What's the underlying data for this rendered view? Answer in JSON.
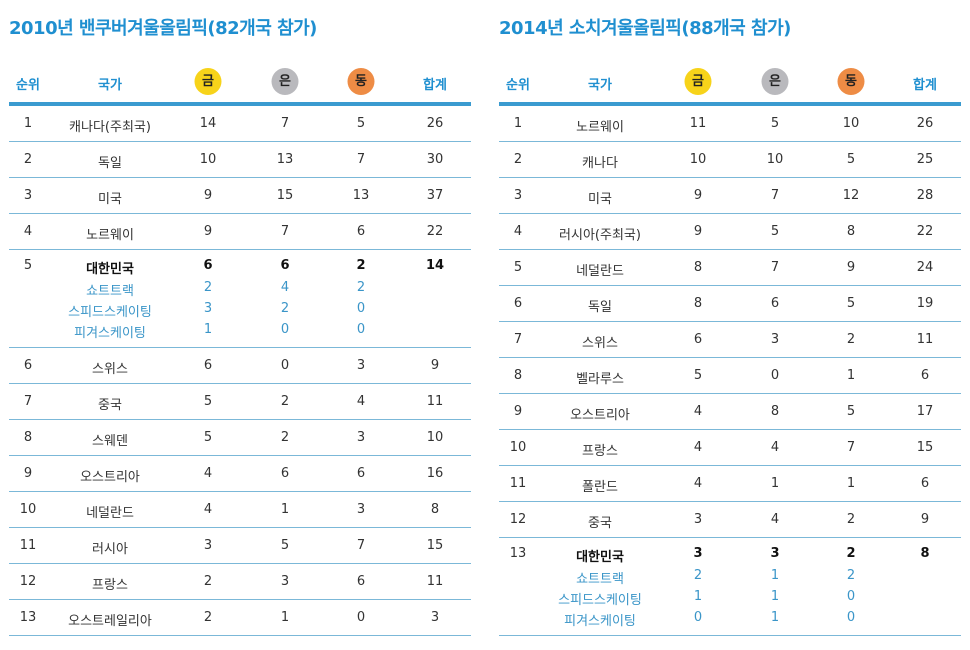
{
  "headers": {
    "rank": "순위",
    "country": "국가",
    "gold": "금",
    "silver": "은",
    "bronze": "동",
    "total": "합계"
  },
  "colors": {
    "gold": "#f7d31a",
    "silver": "#b9b9bd",
    "bronze": "#ee8c45",
    "accent": "#1f8fd0"
  },
  "tables": [
    {
      "title": "2010년 밴쿠버겨울올림픽(82개국 참가)",
      "rows": [
        {
          "rank": "1",
          "country": "캐나다(주최국)",
          "gold": "14",
          "silver": "7",
          "bronze": "5",
          "total": "26"
        },
        {
          "rank": "2",
          "country": "독일",
          "gold": "10",
          "silver": "13",
          "bronze": "7",
          "total": "30"
        },
        {
          "rank": "3",
          "country": "미국",
          "gold": "9",
          "silver": "15",
          "bronze": "13",
          "total": "37"
        },
        {
          "rank": "4",
          "country": "노르웨이",
          "gold": "9",
          "silver": "7",
          "bronze": "6",
          "total": "22"
        },
        {
          "rank": "5",
          "country": "대한민국",
          "gold": "6",
          "silver": "6",
          "bronze": "2",
          "total": "14",
          "highlight": true,
          "breakdown": [
            {
              "sport": "쇼트트랙",
              "gold": "2",
              "silver": "4",
              "bronze": "2"
            },
            {
              "sport": "스피드스케이팅",
              "gold": "3",
              "silver": "2",
              "bronze": "0"
            },
            {
              "sport": "피겨스케이팅",
              "gold": "1",
              "silver": "0",
              "bronze": "0"
            }
          ]
        },
        {
          "rank": "6",
          "country": "스위스",
          "gold": "6",
          "silver": "0",
          "bronze": "3",
          "total": "9"
        },
        {
          "rank": "7",
          "country": "중국",
          "gold": "5",
          "silver": "2",
          "bronze": "4",
          "total": "11"
        },
        {
          "rank": "8",
          "country": "스웨덴",
          "gold": "5",
          "silver": "2",
          "bronze": "3",
          "total": "10"
        },
        {
          "rank": "9",
          "country": "오스트리아",
          "gold": "4",
          "silver": "6",
          "bronze": "6",
          "total": "16"
        },
        {
          "rank": "10",
          "country": "네덜란드",
          "gold": "4",
          "silver": "1",
          "bronze": "3",
          "total": "8"
        },
        {
          "rank": "11",
          "country": "러시아",
          "gold": "3",
          "silver": "5",
          "bronze": "7",
          "total": "15"
        },
        {
          "rank": "12",
          "country": "프랑스",
          "gold": "2",
          "silver": "3",
          "bronze": "6",
          "total": "11"
        },
        {
          "rank": "13",
          "country": "오스트레일리아",
          "gold": "2",
          "silver": "1",
          "bronze": "0",
          "total": "3"
        }
      ]
    },
    {
      "title": "2014년 소치겨울올림픽(88개국 참가)",
      "rows": [
        {
          "rank": "1",
          "country": "노르웨이",
          "gold": "11",
          "silver": "5",
          "bronze": "10",
          "total": "26"
        },
        {
          "rank": "2",
          "country": "캐나다",
          "gold": "10",
          "silver": "10",
          "bronze": "5",
          "total": "25"
        },
        {
          "rank": "3",
          "country": "미국",
          "gold": "9",
          "silver": "7",
          "bronze": "12",
          "total": "28"
        },
        {
          "rank": "4",
          "country": "러시아(주최국)",
          "gold": "9",
          "silver": "5",
          "bronze": "8",
          "total": "22"
        },
        {
          "rank": "5",
          "country": "네덜란드",
          "gold": "8",
          "silver": "7",
          "bronze": "9",
          "total": "24"
        },
        {
          "rank": "6",
          "country": "독일",
          "gold": "8",
          "silver": "6",
          "bronze": "5",
          "total": "19"
        },
        {
          "rank": "7",
          "country": "스위스",
          "gold": "6",
          "silver": "3",
          "bronze": "2",
          "total": "11"
        },
        {
          "rank": "8",
          "country": "벨라루스",
          "gold": "5",
          "silver": "0",
          "bronze": "1",
          "total": "6"
        },
        {
          "rank": "9",
          "country": "오스트리아",
          "gold": "4",
          "silver": "8",
          "bronze": "5",
          "total": "17"
        },
        {
          "rank": "10",
          "country": "프랑스",
          "gold": "4",
          "silver": "4",
          "bronze": "7",
          "total": "15"
        },
        {
          "rank": "11",
          "country": "폴란드",
          "gold": "4",
          "silver": "1",
          "bronze": "1",
          "total": "6"
        },
        {
          "rank": "12",
          "country": "중국",
          "gold": "3",
          "silver": "4",
          "bronze": "2",
          "total": "9"
        },
        {
          "rank": "13",
          "country": "대한민국",
          "gold": "3",
          "silver": "3",
          "bronze": "2",
          "total": "8",
          "highlight": true,
          "breakdown": [
            {
              "sport": "쇼트트랙",
              "gold": "2",
              "silver": "1",
              "bronze": "2"
            },
            {
              "sport": "스피드스케이팅",
              "gold": "1",
              "silver": "1",
              "bronze": "0"
            },
            {
              "sport": "피겨스케이팅",
              "gold": "0",
              "silver": "1",
              "bronze": "0"
            }
          ]
        }
      ]
    }
  ]
}
